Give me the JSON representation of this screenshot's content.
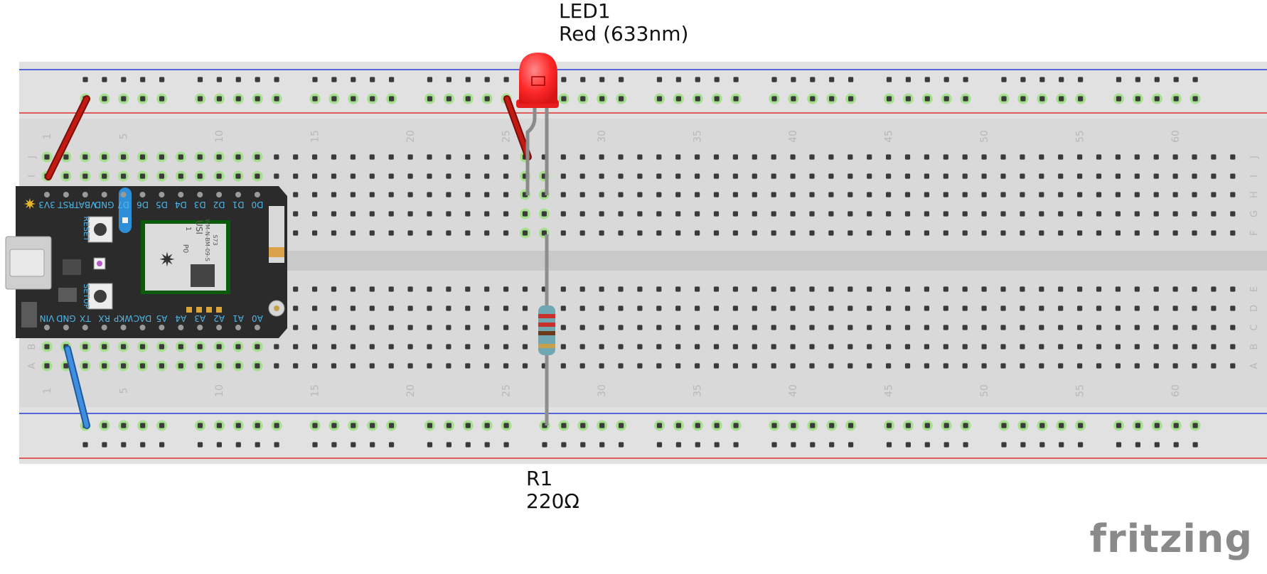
{
  "led_label": {
    "ref": "LED1",
    "value": "Red (633nm)"
  },
  "resistor_label": {
    "ref": "R1",
    "value": "220Ω"
  },
  "logo": "fritzing",
  "breadboard": {
    "column_numbers": [
      "1",
      "5",
      "10",
      "15",
      "20",
      "25",
      "30",
      "35",
      "40",
      "45",
      "50",
      "55",
      "60"
    ],
    "top_row_letters": [
      "J",
      "I",
      "H",
      "G",
      "F"
    ],
    "bottom_row_letters": [
      "E",
      "D",
      "C",
      "B",
      "A"
    ],
    "left_letters_visible": [
      "J",
      "I",
      "B",
      "A"
    ]
  },
  "photon": {
    "top_pins": [
      "3V3",
      "RST",
      "VBAT",
      "GND",
      "D7",
      "D6",
      "D5",
      "D4",
      "D3",
      "D2",
      "D1",
      "D0"
    ],
    "bottom_pins": [
      "VIN",
      "GND",
      "TX",
      "RX",
      "WKP",
      "DAC",
      "A5",
      "A4",
      "A3",
      "A2",
      "A1",
      "A0"
    ],
    "buttons": [
      "RESET",
      "SETUP"
    ],
    "module_text": [
      "USI",
      "P0",
      "1",
      "WM-N-BM-09-S",
      "S73"
    ]
  },
  "colors": {
    "board": "#d9d9d9",
    "hole": "#3a3a3a",
    "hole_active": "#a6e08f",
    "rail_red": "#e03131",
    "rail_blue": "#2b3fd6",
    "wire_red": "#b3140e",
    "wire_blue": "#2e7bd0",
    "wire_grey": "#8e8e8e",
    "led": "#ff2a2a",
    "photon_body": "#2b2b2b",
    "photon_pin_label": "#4fb6e8"
  }
}
